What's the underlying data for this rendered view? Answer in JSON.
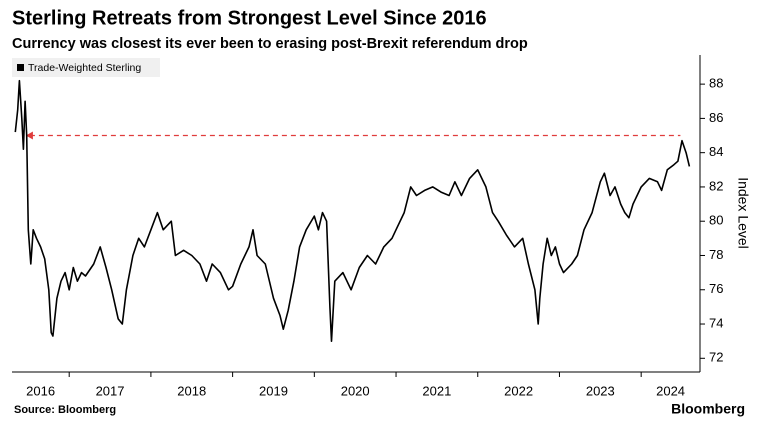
{
  "chart_data": {
    "type": "line",
    "title": "Sterling Retreats from Strongest Level Since 2016",
    "subtitle": "Currency was closest its ever been to erasing post-Brexit referendum drop",
    "y_label": "Index Level",
    "source": "Source: Bloomberg",
    "brand": "Bloomberg",
    "xlim": [
      2016.3,
      2024.72
    ],
    "xticks": [
      2016,
      2017,
      2018,
      2019,
      2020,
      2021,
      2022,
      2023,
      2024
    ],
    "ylim": [
      71.2,
      89.7
    ],
    "yticks": [
      72,
      74,
      76,
      78,
      80,
      82,
      84,
      86,
      88
    ],
    "reference_line": {
      "y": 85,
      "x": [
        2016.47,
        2024.48
      ],
      "color": "#e03c3c"
    },
    "x": [
      2016.34,
      2016.37,
      2016.39,
      2016.42,
      2016.44,
      2016.46,
      2016.48,
      2016.5,
      2016.53,
      2016.56,
      2016.6,
      2016.65,
      2016.7,
      2016.75,
      2016.78,
      2016.8,
      2016.85,
      2016.9,
      2016.95,
      2017.0,
      2017.05,
      2017.1,
      2017.15,
      2017.2,
      2017.3,
      2017.38,
      2017.45,
      2017.52,
      2017.6,
      2017.65,
      2017.7,
      2017.78,
      2017.85,
      2017.92,
      2018.0,
      2018.08,
      2018.15,
      2018.25,
      2018.3,
      2018.4,
      2018.5,
      2018.6,
      2018.68,
      2018.75,
      2018.85,
      2018.95,
      2019.0,
      2019.1,
      2019.2,
      2019.25,
      2019.3,
      2019.4,
      2019.5,
      2019.58,
      2019.62,
      2019.68,
      2019.75,
      2019.82,
      2019.9,
      2020.0,
      2020.05,
      2020.1,
      2020.15,
      2020.19,
      2020.21,
      2020.25,
      2020.35,
      2020.45,
      2020.55,
      2020.65,
      2020.75,
      2020.85,
      2020.95,
      2021.0,
      2021.1,
      2021.18,
      2021.25,
      2021.35,
      2021.45,
      2021.55,
      2021.65,
      2021.72,
      2021.8,
      2021.9,
      2022.0,
      2022.05,
      2022.1,
      2022.18,
      2022.25,
      2022.35,
      2022.45,
      2022.55,
      2022.62,
      2022.7,
      2022.74,
      2022.76,
      2022.8,
      2022.85,
      2022.9,
      2022.95,
      2023.0,
      2023.05,
      2023.15,
      2023.22,
      2023.3,
      2023.4,
      2023.5,
      2023.55,
      2023.62,
      2023.68,
      2023.75,
      2023.8,
      2023.85,
      2023.9,
      2023.95,
      2024.0,
      2024.1,
      2024.2,
      2024.25,
      2024.32,
      2024.4,
      2024.45,
      2024.5,
      2024.55,
      2024.59
    ],
    "series": [
      {
        "name": "Trade-Weighted Sterling",
        "color": "#000000",
        "values": [
          85.2,
          86.5,
          88.2,
          86.0,
          84.2,
          87.0,
          85.0,
          79.5,
          77.5,
          79.5,
          79.0,
          78.5,
          77.8,
          76.0,
          73.5,
          73.3,
          75.5,
          76.5,
          77.0,
          76.0,
          77.3,
          76.5,
          77.0,
          76.8,
          77.5,
          78.5,
          77.3,
          76.0,
          74.3,
          74.0,
          76.0,
          78.0,
          79.0,
          78.5,
          79.5,
          80.5,
          79.5,
          80.0,
          78.0,
          78.3,
          78.0,
          77.5,
          76.5,
          77.5,
          77.0,
          76.0,
          76.2,
          77.5,
          78.5,
          79.5,
          78.0,
          77.5,
          75.5,
          74.5,
          73.7,
          74.8,
          76.5,
          78.5,
          79.5,
          80.3,
          79.5,
          80.5,
          80.0,
          75.0,
          73.0,
          76.5,
          77.0,
          76.0,
          77.3,
          78.0,
          77.5,
          78.5,
          79.0,
          79.5,
          80.5,
          82.0,
          81.5,
          81.8,
          82.0,
          81.7,
          81.5,
          82.3,
          81.5,
          82.5,
          83.0,
          82.5,
          82.0,
          80.5,
          80.0,
          79.2,
          78.5,
          79.0,
          77.5,
          76.0,
          74.0,
          75.5,
          77.5,
          79.0,
          78.0,
          78.5,
          77.5,
          77.0,
          77.5,
          78.0,
          79.5,
          80.5,
          82.3,
          82.8,
          81.5,
          82.0,
          81.0,
          80.5,
          80.2,
          81.0,
          81.5,
          82.0,
          82.5,
          82.3,
          81.8,
          83.0,
          83.3,
          83.5,
          84.7,
          84.0,
          83.2
        ]
      }
    ]
  }
}
